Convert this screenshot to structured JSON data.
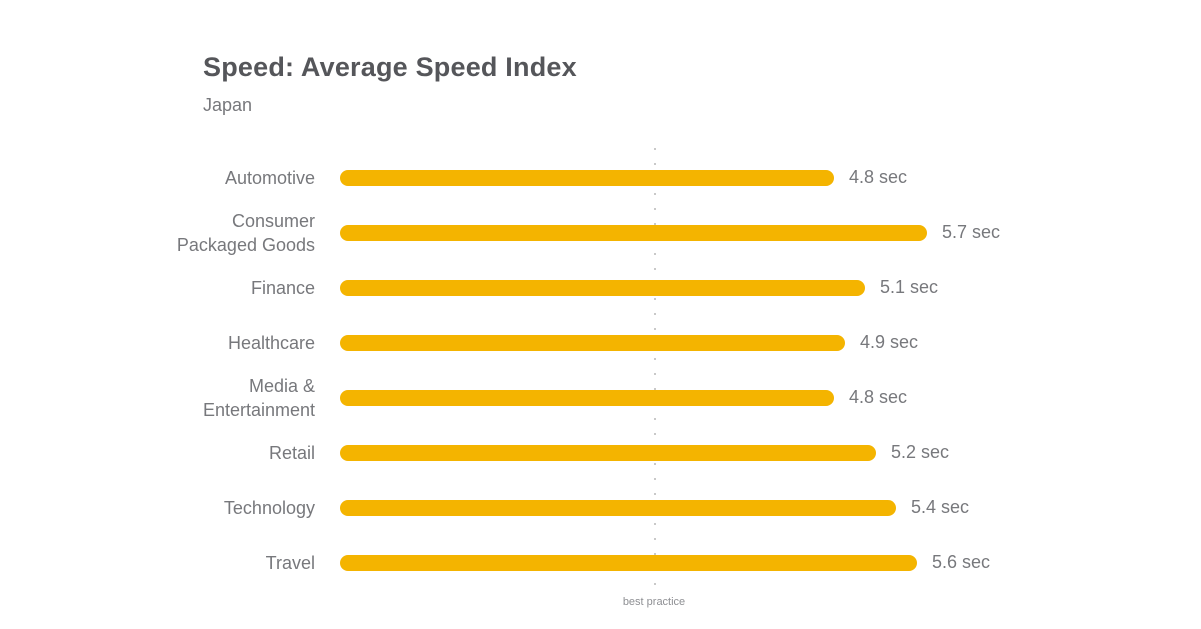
{
  "chart_data": {
    "type": "bar",
    "orientation": "horizontal",
    "title": "Speed: Average Speed Index",
    "subtitle": "Japan",
    "unit": "sec",
    "categories": [
      "Automotive",
      "Consumer Packaged Goods",
      "Finance",
      "Healthcare",
      "Media & Entertainment",
      "Retail",
      "Technology",
      "Travel"
    ],
    "values": [
      4.8,
      5.7,
      5.1,
      4.9,
      4.8,
      5.2,
      5.4,
      5.6
    ],
    "value_labels": [
      "4.8 sec",
      "5.7 sec",
      "5.1 sec",
      "4.9 sec",
      "4.8 sec",
      "5.2 sec",
      "5.4 sec",
      "5.6 sec"
    ],
    "xlim": [
      0,
      6
    ],
    "grid": false,
    "legend": "none",
    "guideline": {
      "label": "best practice",
      "value_sec": 3.05
    },
    "colors": {
      "bar": "#F4B400",
      "title_text": "#55565A",
      "label_text": "#77787C",
      "guideline": "#C9C9C9",
      "guideline_label": "#8E8F93"
    }
  }
}
